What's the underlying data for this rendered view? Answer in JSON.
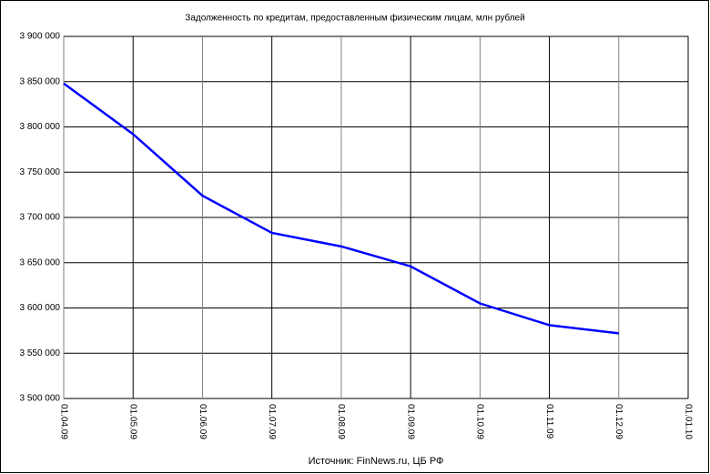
{
  "chart_data": {
    "type": "line",
    "title": "Задолженность по кредитам, предоставленным физическим лицам, млн рублей",
    "source": "Источник: FinNews.ru, ЦБ РФ",
    "categories": [
      "01.04.09",
      "01.05.09",
      "01.06.09",
      "01.07.09",
      "01.08.09",
      "01.09.09",
      "01.10.09",
      "01.11.09",
      "01.12.09",
      "01.01.10"
    ],
    "series": [
      {
        "color": "#0000ff",
        "values": [
          3848000,
          3792000,
          3724000,
          3683000,
          3668000,
          3646000,
          3605000,
          3581000,
          3572000,
          null
        ]
      }
    ],
    "ylim": [
      3500000,
      3900000
    ],
    "yticks": [
      {
        "value": 3500000,
        "label": "3 500 000"
      },
      {
        "value": 3550000,
        "label": "3 550 000"
      },
      {
        "value": 3600000,
        "label": "3 600 000"
      },
      {
        "value": 3650000,
        "label": "3 650 000"
      },
      {
        "value": 3700000,
        "label": "3 700 000"
      },
      {
        "value": 3750000,
        "label": "3 750 000"
      },
      {
        "value": 3800000,
        "label": "3 800 000"
      },
      {
        "value": 3850000,
        "label": "3 850 000"
      },
      {
        "value": 3900000,
        "label": "3 900 000"
      }
    ],
    "grid": true
  }
}
